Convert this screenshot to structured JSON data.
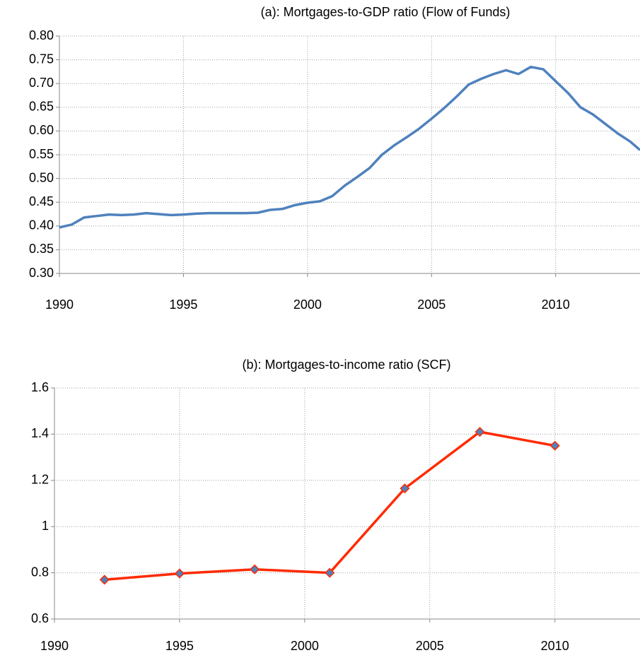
{
  "chart_data": [
    {
      "type": "line",
      "title": "(a): Mortgages-to-GDP ratio (Flow of Funds)",
      "x": [
        1990.0,
        1990.5,
        1991.0,
        1991.5,
        1992.0,
        1992.5,
        1993.0,
        1993.5,
        1994.0,
        1994.5,
        1995.0,
        1995.5,
        1996.0,
        1996.5,
        1997.0,
        1997.5,
        1998.0,
        1998.5,
        1999.0,
        1999.5,
        2000.0,
        2000.5,
        2001.0,
        2001.5,
        2002.0,
        2002.5,
        2003.0,
        2003.5,
        2004.0,
        2004.5,
        2005.0,
        2005.5,
        2006.0,
        2006.5,
        2007.0,
        2007.5,
        2008.0,
        2008.5,
        2009.0,
        2009.5,
        2010.0,
        2010.5,
        2011.0,
        2011.5,
        2012.0,
        2012.5,
        2013.0,
        2013.4
      ],
      "values": [
        0.397,
        0.403,
        0.418,
        0.421,
        0.424,
        0.423,
        0.424,
        0.427,
        0.425,
        0.423,
        0.424,
        0.426,
        0.427,
        0.427,
        0.427,
        0.427,
        0.428,
        0.434,
        0.436,
        0.444,
        0.449,
        0.452,
        0.463,
        0.485,
        0.503,
        0.522,
        0.55,
        0.57,
        0.587,
        0.605,
        0.626,
        0.648,
        0.672,
        0.698,
        0.71,
        0.72,
        0.728,
        0.72,
        0.735,
        0.73,
        0.705,
        0.68,
        0.65,
        0.635,
        0.615,
        0.595,
        0.578,
        0.56
      ],
      "color": "#4f81bd",
      "xlim": [
        1990,
        2013.4
      ],
      "xticks": [
        1990,
        1995,
        2000,
        2005,
        2010
      ],
      "ylim": [
        0.3,
        0.8
      ],
      "yticks": [
        {
          "value": 0.3,
          "label": "0.30"
        },
        {
          "value": 0.35,
          "label": "0.35"
        },
        {
          "value": 0.4,
          "label": "0.40"
        },
        {
          "value": 0.45,
          "label": "0.45"
        },
        {
          "value": 0.5,
          "label": "0.50"
        },
        {
          "value": 0.55,
          "label": "0.55"
        },
        {
          "value": 0.6,
          "label": "0.60"
        },
        {
          "value": 0.65,
          "label": "0.65"
        },
        {
          "value": 0.7,
          "label": "0.70"
        },
        {
          "value": 0.75,
          "label": "0.75"
        },
        {
          "value": 0.8,
          "label": "0.80"
        }
      ],
      "grid": true
    },
    {
      "type": "line",
      "title": "(b): Mortgages-to-income ratio (SCF)",
      "x": [
        1992,
        1995,
        1998,
        2001,
        2004,
        2007,
        2010
      ],
      "values": [
        0.77,
        0.797,
        0.815,
        0.8,
        1.165,
        1.41,
        1.35
      ],
      "color": "#ff2a00",
      "marker": "diamond",
      "marker_color": "#4f81bd",
      "xlim": [
        1990,
        2013.4
      ],
      "xticks": [
        1990,
        1995,
        2000,
        2005,
        2010
      ],
      "ylim": [
        0.6,
        1.6
      ],
      "yticks": [
        0.6,
        0.8,
        1,
        1.2,
        1.4,
        1.6
      ],
      "grid": true
    }
  ]
}
